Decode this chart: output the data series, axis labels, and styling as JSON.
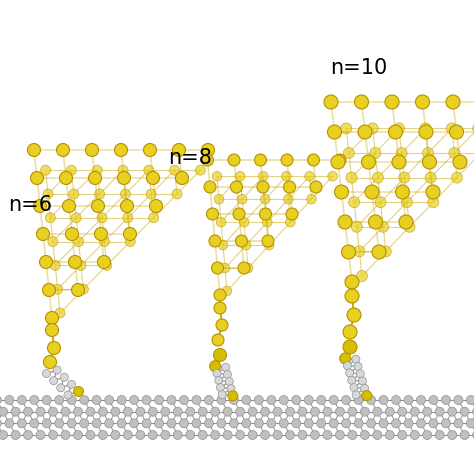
{
  "background_color": "#ffffff",
  "gold_color": "#E8D020",
  "gold_edge_color": "#B89000",
  "carbon_color": "#C0C0C0",
  "carbon_edge_color": "#909090",
  "bond_color_gold": "#C8A800",
  "bond_color_carbon": "#A0A0A0",
  "graphene_color": "#C0C0C0",
  "graphene_edge": "#909090",
  "sulfur_color": "#D4C000",
  "labels": [
    "n=6",
    "n=8",
    "n=10"
  ],
  "label_fontsize": 15,
  "figsize": [
    4.74,
    4.74
  ],
  "dpi": 100
}
